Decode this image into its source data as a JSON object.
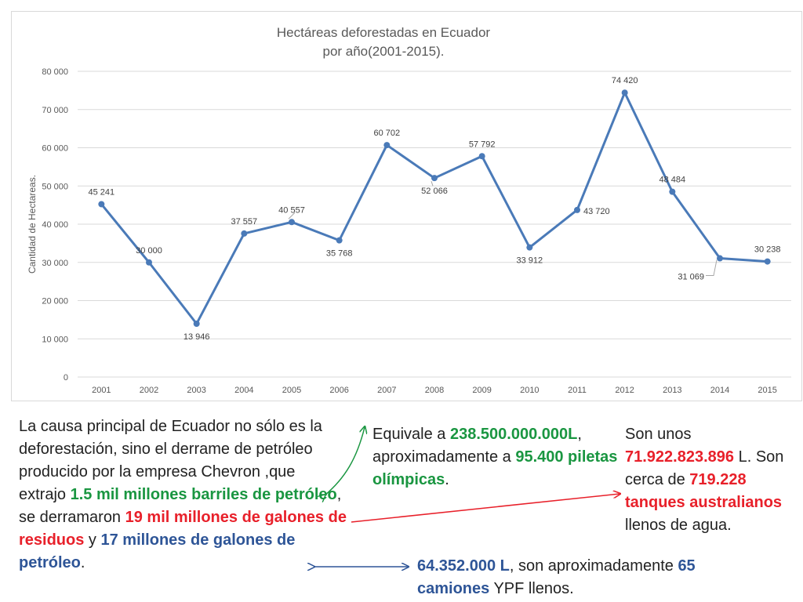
{
  "chart_data": {
    "type": "line",
    "title": [
      "Hectáreas deforestadas en Ecuador",
      "por año(2001-2015)."
    ],
    "xlabel": "",
    "ylabel": "Cantidad de Hectareas.",
    "ylim": [
      0,
      80000
    ],
    "yticks": [
      0,
      10000,
      20000,
      30000,
      40000,
      50000,
      60000,
      70000,
      80000
    ],
    "ytick_labels": [
      "0",
      "10 000",
      "20 000",
      "30 000",
      "40 000",
      "50 000",
      "60 000",
      "70 000",
      "80 000"
    ],
    "categories": [
      "2001",
      "2002",
      "2003",
      "2004",
      "2005",
      "2006",
      "2007",
      "2008",
      "2009",
      "2010",
      "2011",
      "2012",
      "2013",
      "2014",
      "2015"
    ],
    "series": [
      {
        "values": [
          45241,
          30000,
          13946,
          37557,
          40557,
          35768,
          60702,
          52066,
          57792,
          33912,
          43720,
          74420,
          48484,
          31069,
          30238
        ]
      }
    ],
    "data_labels": [
      "45 241",
      "30 000",
      "13 946",
      "37 557",
      "40 557",
      "35 768",
      "60 702",
      "52 066",
      "57 792",
      "33 912",
      "43 720",
      "74 420",
      "48 484",
      "31 069",
      "30 238"
    ],
    "line_color": "#4a7ab8",
    "grid": true,
    "legend": "none"
  },
  "text": {
    "cause": {
      "p1": "La causa principal de Ecuador no sólo es la deforestación, sino el derrame de petróleo producido por la empresa Chevron ,que extrajo ",
      "g1": "1.5 mil millones barriles de petróleo",
      "p2": ", se derramaron ",
      "r1": "19 mil millones de galones de residuos",
      "p3": " y ",
      "b1": "17 millones de galones de petróleo",
      "p4": "."
    },
    "equivale": {
      "p1": "Equivale a ",
      "g1": "238.500.000.000L",
      "p2": ", aproximadamente a ",
      "g2": "95.400 piletas olímpicas",
      "p3": "."
    },
    "son_unos": {
      "p1": "Son unos ",
      "r1": "71.922.823.896",
      "p2": " L. Son cerca de ",
      "r2": "719.228 tanques australianos",
      "p3": " llenos de agua."
    },
    "camiones": {
      "b1": "64.352.000 L",
      "p1": ", son aproximadamente ",
      "b2": "65 camiones",
      "p2": " YPF llenos."
    }
  },
  "colors": {
    "green": "#1a9641",
    "red": "#e8202a",
    "blue": "#2e5597",
    "grid": "#d9d9d9"
  }
}
